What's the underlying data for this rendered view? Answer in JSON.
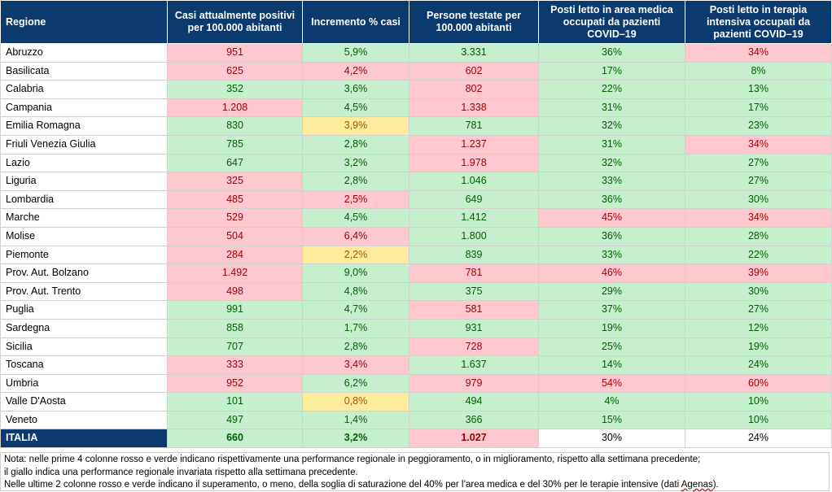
{
  "headers": [
    "Regione",
    "Casi attualmente positivi per 100.000 abitanti",
    "Incremento % casi",
    "Persone testate per 100.000 abitanti",
    "Posti letto in area medica occupati da pazienti COVID–19",
    "Posti letto in terapia intensiva occupati da pazienti COVID–19"
  ],
  "colors": {
    "header_bg": "#0b3a6e",
    "red_bg": "#ffc7ce",
    "red_text": "#9c0006",
    "green_bg": "#c6efce",
    "green_text": "#006100",
    "yellow_bg": "#ffeb9c",
    "yellow_text": "#9c5700"
  },
  "rows": [
    {
      "region": "Abruzzo",
      "cells": [
        {
          "v": "951",
          "c": "red"
        },
        {
          "v": "5,9%",
          "c": "green"
        },
        {
          "v": "3.331",
          "c": "green"
        },
        {
          "v": "36%",
          "c": "green"
        },
        {
          "v": "34%",
          "c": "red"
        }
      ]
    },
    {
      "region": "Basilicata",
      "cells": [
        {
          "v": "625",
          "c": "red"
        },
        {
          "v": "4,2%",
          "c": "red"
        },
        {
          "v": "602",
          "c": "red"
        },
        {
          "v": "17%",
          "c": "green"
        },
        {
          "v": "8%",
          "c": "green"
        }
      ]
    },
    {
      "region": "Calabria",
      "cells": [
        {
          "v": "352",
          "c": "green"
        },
        {
          "v": "3,6%",
          "c": "green"
        },
        {
          "v": "802",
          "c": "red"
        },
        {
          "v": "22%",
          "c": "green"
        },
        {
          "v": "13%",
          "c": "green"
        }
      ]
    },
    {
      "region": "Campania",
      "cells": [
        {
          "v": "1.208",
          "c": "red"
        },
        {
          "v": "4,5%",
          "c": "green"
        },
        {
          "v": "1.338",
          "c": "red"
        },
        {
          "v": "31%",
          "c": "green"
        },
        {
          "v": "17%",
          "c": "green"
        }
      ]
    },
    {
      "region": "Emilia Romagna",
      "cells": [
        {
          "v": "830",
          "c": "green"
        },
        {
          "v": "3,9%",
          "c": "yellow"
        },
        {
          "v": "781",
          "c": "green"
        },
        {
          "v": "32%",
          "c": "green"
        },
        {
          "v": "23%",
          "c": "green"
        }
      ]
    },
    {
      "region": "Friuli Venezia Giulia",
      "cells": [
        {
          "v": "785",
          "c": "green"
        },
        {
          "v": "2,8%",
          "c": "green"
        },
        {
          "v": "1.237",
          "c": "red"
        },
        {
          "v": "31%",
          "c": "green"
        },
        {
          "v": "34%",
          "c": "red"
        }
      ]
    },
    {
      "region": "Lazio",
      "cells": [
        {
          "v": "647",
          "c": "green"
        },
        {
          "v": "3,2%",
          "c": "green"
        },
        {
          "v": "1.978",
          "c": "red"
        },
        {
          "v": "32%",
          "c": "green"
        },
        {
          "v": "27%",
          "c": "green"
        }
      ]
    },
    {
      "region": "Liguria",
      "cells": [
        {
          "v": "325",
          "c": "red"
        },
        {
          "v": "2,8%",
          "c": "green"
        },
        {
          "v": "1.046",
          "c": "green"
        },
        {
          "v": "33%",
          "c": "green"
        },
        {
          "v": "27%",
          "c": "green"
        }
      ]
    },
    {
      "region": "Lombardia",
      "cells": [
        {
          "v": "485",
          "c": "red"
        },
        {
          "v": "2,5%",
          "c": "red"
        },
        {
          "v": "649",
          "c": "green"
        },
        {
          "v": "36%",
          "c": "green"
        },
        {
          "v": "30%",
          "c": "green"
        }
      ]
    },
    {
      "region": "Marche",
      "cells": [
        {
          "v": "529",
          "c": "red"
        },
        {
          "v": "4,5%",
          "c": "green"
        },
        {
          "v": "1.412",
          "c": "green"
        },
        {
          "v": "45%",
          "c": "red"
        },
        {
          "v": "34%",
          "c": "red"
        }
      ]
    },
    {
      "region": "Molise",
      "cells": [
        {
          "v": "504",
          "c": "red"
        },
        {
          "v": "6,4%",
          "c": "red"
        },
        {
          "v": "1.800",
          "c": "green"
        },
        {
          "v": "36%",
          "c": "green"
        },
        {
          "v": "28%",
          "c": "green"
        }
      ]
    },
    {
      "region": "Piemonte",
      "cells": [
        {
          "v": "284",
          "c": "red"
        },
        {
          "v": "2,2%",
          "c": "yellow"
        },
        {
          "v": "839",
          "c": "green"
        },
        {
          "v": "33%",
          "c": "green"
        },
        {
          "v": "22%",
          "c": "green"
        }
      ]
    },
    {
      "region": "Prov. Aut. Bolzano",
      "cells": [
        {
          "v": "1.492",
          "c": "red"
        },
        {
          "v": "9,0%",
          "c": "green"
        },
        {
          "v": "781",
          "c": "red"
        },
        {
          "v": "46%",
          "c": "red"
        },
        {
          "v": "39%",
          "c": "red"
        }
      ]
    },
    {
      "region": "Prov. Aut. Trento",
      "cells": [
        {
          "v": "498",
          "c": "red"
        },
        {
          "v": "4,8%",
          "c": "green"
        },
        {
          "v": "375",
          "c": "green"
        },
        {
          "v": "29%",
          "c": "green"
        },
        {
          "v": "30%",
          "c": "green"
        }
      ]
    },
    {
      "region": "Puglia",
      "cells": [
        {
          "v": "991",
          "c": "green"
        },
        {
          "v": "4,7%",
          "c": "green"
        },
        {
          "v": "581",
          "c": "red"
        },
        {
          "v": "37%",
          "c": "green"
        },
        {
          "v": "27%",
          "c": "green"
        }
      ]
    },
    {
      "region": "Sardegna",
      "cells": [
        {
          "v": "858",
          "c": "green"
        },
        {
          "v": "1,7%",
          "c": "green"
        },
        {
          "v": "931",
          "c": "green"
        },
        {
          "v": "19%",
          "c": "green"
        },
        {
          "v": "12%",
          "c": "green"
        }
      ]
    },
    {
      "region": "Sicilia",
      "cells": [
        {
          "v": "707",
          "c": "green"
        },
        {
          "v": "2,8%",
          "c": "green"
        },
        {
          "v": "728",
          "c": "red"
        },
        {
          "v": "25%",
          "c": "green"
        },
        {
          "v": "19%",
          "c": "green"
        }
      ]
    },
    {
      "region": "Toscana",
      "cells": [
        {
          "v": "333",
          "c": "red"
        },
        {
          "v": "3,4%",
          "c": "red"
        },
        {
          "v": "1.637",
          "c": "green"
        },
        {
          "v": "14%",
          "c": "green"
        },
        {
          "v": "24%",
          "c": "green"
        }
      ]
    },
    {
      "region": "Umbria",
      "cells": [
        {
          "v": "952",
          "c": "red"
        },
        {
          "v": "6,2%",
          "c": "green"
        },
        {
          "v": "979",
          "c": "red"
        },
        {
          "v": "54%",
          "c": "red"
        },
        {
          "v": "60%",
          "c": "red"
        }
      ]
    },
    {
      "region": "Valle D'Aosta",
      "cells": [
        {
          "v": "101",
          "c": "green"
        },
        {
          "v": "0,8%",
          "c": "yellow"
        },
        {
          "v": "494",
          "c": "green"
        },
        {
          "v": "4%",
          "c": "green"
        },
        {
          "v": "10%",
          "c": "green"
        }
      ]
    },
    {
      "region": "Veneto",
      "cells": [
        {
          "v": "497",
          "c": "green"
        },
        {
          "v": "1,4%",
          "c": "green"
        },
        {
          "v": "366",
          "c": "green"
        },
        {
          "v": "15%",
          "c": "green"
        },
        {
          "v": "10%",
          "c": "green"
        }
      ]
    }
  ],
  "total": {
    "region": "ITALIA",
    "cells": [
      {
        "v": "660",
        "c": "green"
      },
      {
        "v": "3,2%",
        "c": "green"
      },
      {
        "v": "1.027",
        "c": "red"
      },
      {
        "v": "30%",
        "c": "plain"
      },
      {
        "v": "24%",
        "c": "plain"
      }
    ]
  },
  "note": {
    "line1": "Nota: nelle prime 4 colonne rosso e verde indicano rispettivamente una performance regionale in peggioramento, o in miglioramento, rispetto alla settimana precedente;",
    "line2": "il giallo indica una performance regionale invariata rispetto alla settimana precedente.",
    "line3_pre": "Nelle ultime 2 colonne rosso e verde indicano il superamento, o meno, della soglia di saturazione del 40% per l’area medica e del 30% per le terapie intensive (dati ",
    "line3_src": "Agenas",
    "line3_post": ")."
  }
}
